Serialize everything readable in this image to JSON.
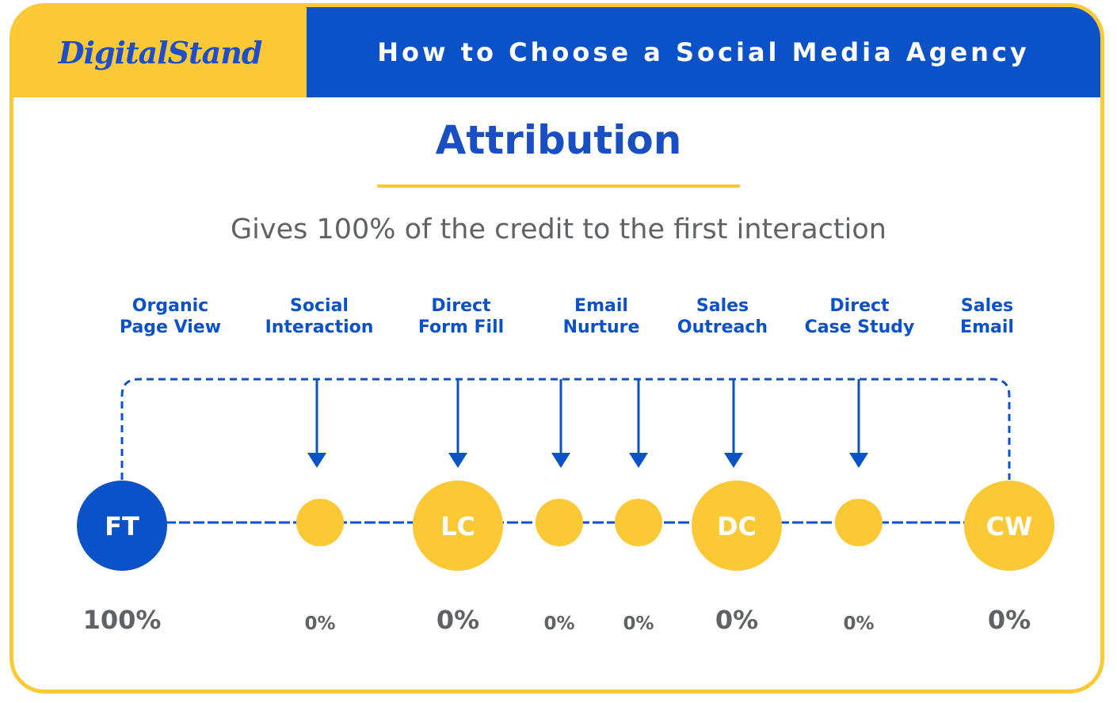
{
  "header": {
    "logo_text": "DigitalStand",
    "title": "How to Choose a Social Media Agency"
  },
  "main": {
    "title": "Attribution",
    "subtitle": "Gives 100% of the credit to the first interaction"
  },
  "colors": {
    "blue": "#0b52c9",
    "yellow": "#fcc936",
    "gray_text": "#5f6266"
  },
  "touchpoints": [
    {
      "label_line1": "Organic",
      "label_line2": "Page View",
      "code": "FT",
      "percent": "100%",
      "role": "first-touch",
      "credit": 100
    },
    {
      "label_line1": "Social",
      "label_line2": "Interaction",
      "code": "",
      "percent": "0%",
      "role": "middle",
      "credit": 0
    },
    {
      "label_line1": "Direct",
      "label_line2": "Form Fill",
      "code": "LC",
      "percent": "0%",
      "role": "milestone",
      "credit": 0
    },
    {
      "label_line1": "Email",
      "label_line2": "Nurture",
      "code": "",
      "percent": "0%",
      "role": "middle",
      "credit": 0
    },
    {
      "label_line1": "Sales",
      "label_line2": "Outreach",
      "code": "",
      "percent": "0%",
      "role": "middle",
      "credit": 0
    },
    {
      "label_line1": "Direct",
      "label_line2": "Case Study",
      "code": "DC",
      "percent": "0%",
      "role": "milestone",
      "credit": 0
    },
    {
      "label_line1": "",
      "label_line2": "",
      "code": "",
      "percent": "0%",
      "role": "middle",
      "credit": 0
    },
    {
      "label_line1": "Sales",
      "label_line2": "Email",
      "code": "CW",
      "percent": "0%",
      "role": "milestone",
      "credit": 0
    }
  ]
}
